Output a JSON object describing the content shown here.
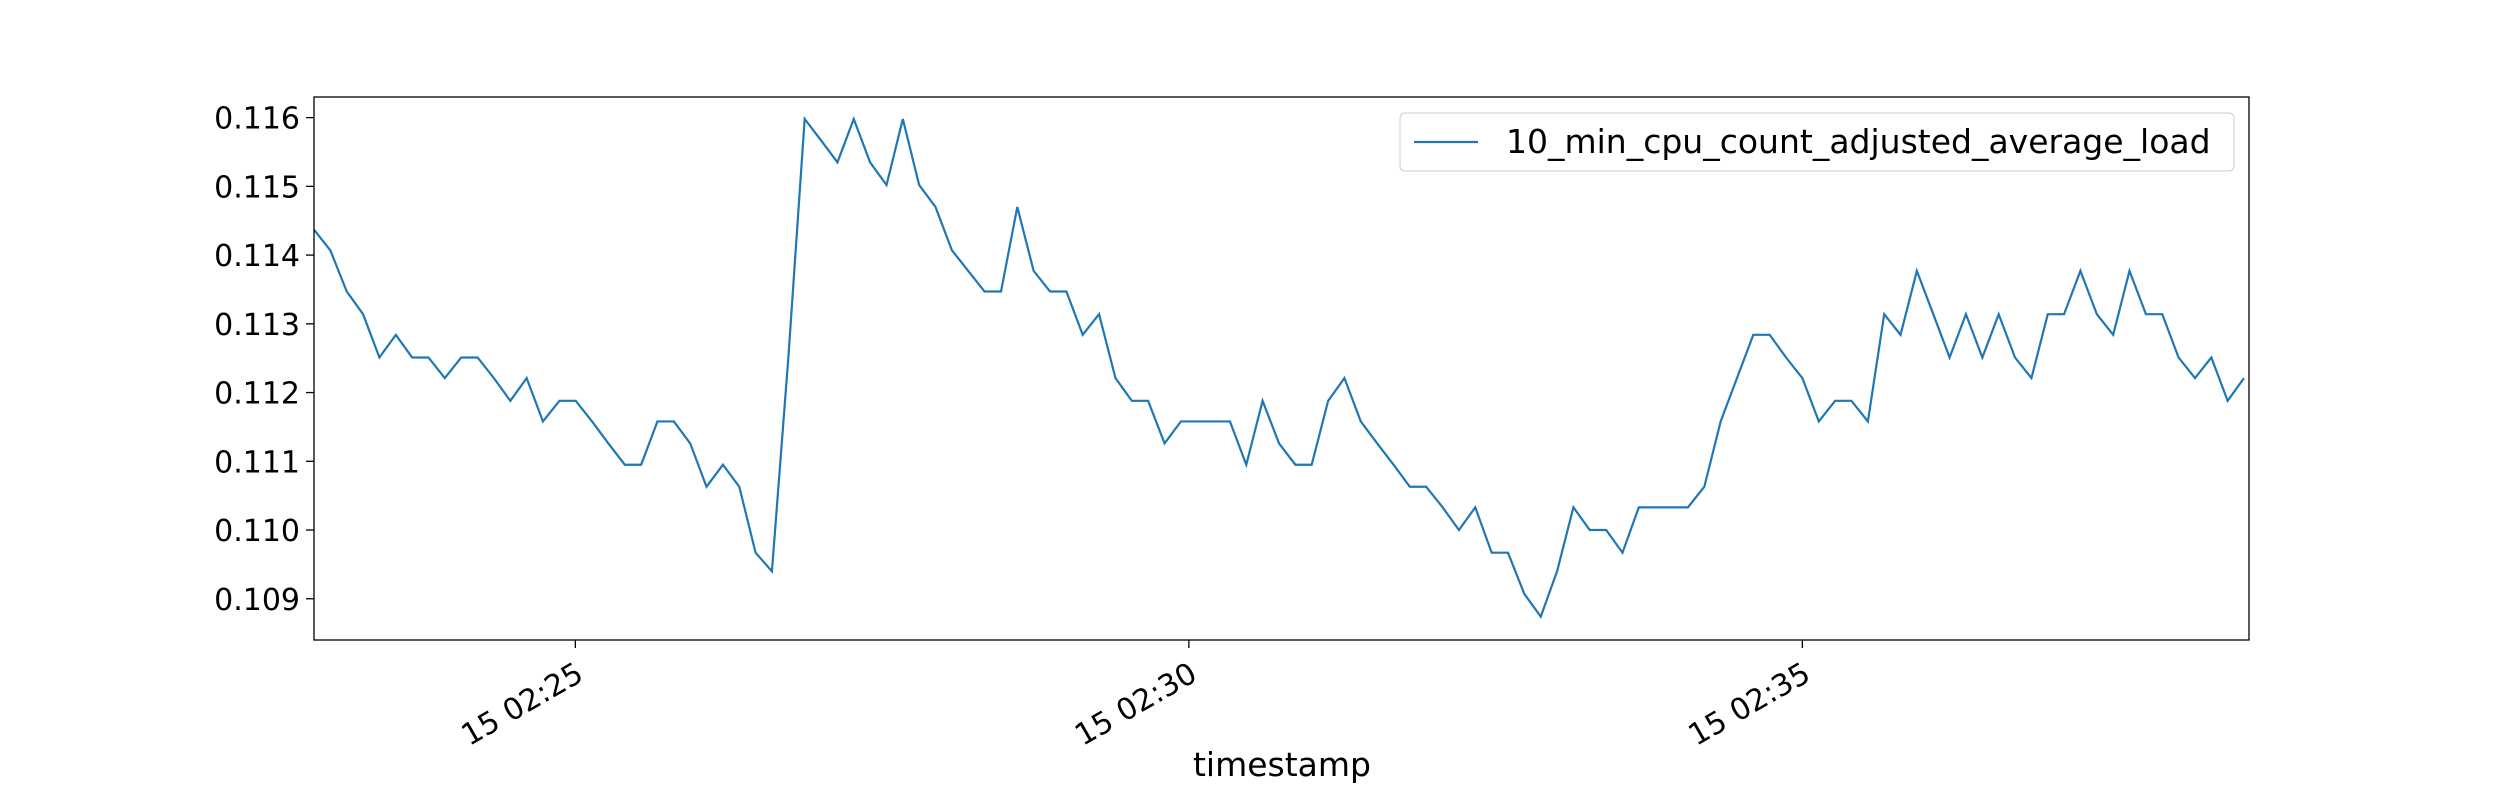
{
  "chart_data": {
    "type": "line",
    "xlabel": "timestamp",
    "x": [
      22.87,
      23.003,
      23.137,
      23.27,
      23.403,
      23.537,
      23.67,
      23.803,
      23.936,
      24.07,
      24.203,
      24.336,
      24.47,
      24.603,
      24.736,
      24.87,
      25.003,
      25.136,
      25.269,
      25.403,
      25.536,
      25.669,
      25.803,
      25.936,
      26.069,
      26.203,
      26.336,
      26.469,
      26.602,
      26.736,
      26.869,
      27.002,
      27.136,
      27.269,
      27.402,
      27.536,
      27.669,
      27.802,
      27.935,
      28.069,
      28.202,
      28.335,
      28.469,
      28.602,
      28.735,
      28.869,
      29.002,
      29.135,
      29.268,
      29.402,
      29.535,
      29.668,
      29.802,
      29.935,
      30.068,
      30.202,
      30.335,
      30.468,
      30.601,
      30.735,
      30.868,
      31.001,
      31.135,
      31.268,
      31.401,
      31.535,
      31.668,
      31.801,
      31.934,
      32.068,
      32.201,
      32.334,
      32.468,
      32.601,
      32.734,
      32.868,
      33.001,
      33.134,
      33.267,
      33.401,
      33.534,
      33.667,
      33.801,
      33.934,
      34.067,
      34.201,
      34.334,
      34.467,
      34.6,
      34.734,
      34.867,
      35.0,
      35.134,
      35.267,
      35.4,
      35.534,
      35.667,
      35.8,
      35.933,
      36.067,
      36.2,
      36.333,
      36.467,
      36.6,
      36.733,
      36.867,
      37.0,
      37.133,
      37.266,
      37.4,
      37.533,
      37.666,
      37.8,
      37.933,
      38.066,
      38.2,
      38.333,
      38.466,
      38.599
    ],
    "series": [
      {
        "name": "10_min_cpu_count_adjusted_average_load",
        "color": "#1f77b4",
        "values": [
          0.11437,
          0.11407,
          0.11347,
          0.11314,
          0.11251,
          0.11284,
          0.11251,
          0.11251,
          0.11221,
          0.11251,
          0.11251,
          0.11221,
          0.11188,
          0.11221,
          0.11158,
          0.11188,
          0.11188,
          0.11158,
          0.11126,
          0.11095,
          0.11095,
          0.11158,
          0.11158,
          0.11126,
          0.11063,
          0.11095,
          0.11063,
          0.10967,
          0.1094,
          0.11251,
          0.11598,
          0.11567,
          0.11535,
          0.11598,
          0.11535,
          0.11502,
          0.11598,
          0.11502,
          0.1147,
          0.11407,
          0.11377,
          0.11347,
          0.11347,
          0.1147,
          0.11377,
          0.11347,
          0.11347,
          0.11284,
          0.11314,
          0.11221,
          0.11188,
          0.11188,
          0.11126,
          0.11158,
          0.11158,
          0.11158,
          0.11158,
          0.11095,
          0.11188,
          0.11126,
          0.11095,
          0.11095,
          0.11188,
          0.11221,
          0.11158,
          0.11126,
          0.11095,
          0.11063,
          0.11063,
          0.11033,
          0.11,
          0.11033,
          0.10967,
          0.10967,
          0.10907,
          0.10874,
          0.1094,
          0.11033,
          0.11,
          0.11,
          0.10967,
          0.11033,
          0.11033,
          0.11033,
          0.11033,
          0.11063,
          0.11158,
          0.11221,
          0.11284,
          0.11284,
          0.11251,
          0.11221,
          0.11158,
          0.11188,
          0.11188,
          0.11158,
          0.11314,
          0.11284,
          0.11377,
          0.11314,
          0.11251,
          0.11314,
          0.11251,
          0.11314,
          0.11251,
          0.11221,
          0.11314,
          0.11314,
          0.11377,
          0.11314,
          0.11284,
          0.11377,
          0.11314,
          0.11314,
          0.11251,
          0.11221,
          0.11251,
          0.11188,
          0.11221
        ]
      }
    ],
    "xlim": [
      22.87,
      38.64
    ],
    "xticks": [
      {
        "value": 25,
        "label": "15 02:25"
      },
      {
        "value": 30,
        "label": "15 02:30"
      },
      {
        "value": 35,
        "label": "15 02:35"
      }
    ],
    "ylim": [
      0.1084,
      0.1163
    ],
    "yticks": [
      0.109,
      {
        "value": 0.11,
        "label": "0.110"
      },
      0.111,
      0.112,
      0.113,
      0.114,
      0.115,
      0.116
    ],
    "legend": "upper right",
    "grid": false
  }
}
